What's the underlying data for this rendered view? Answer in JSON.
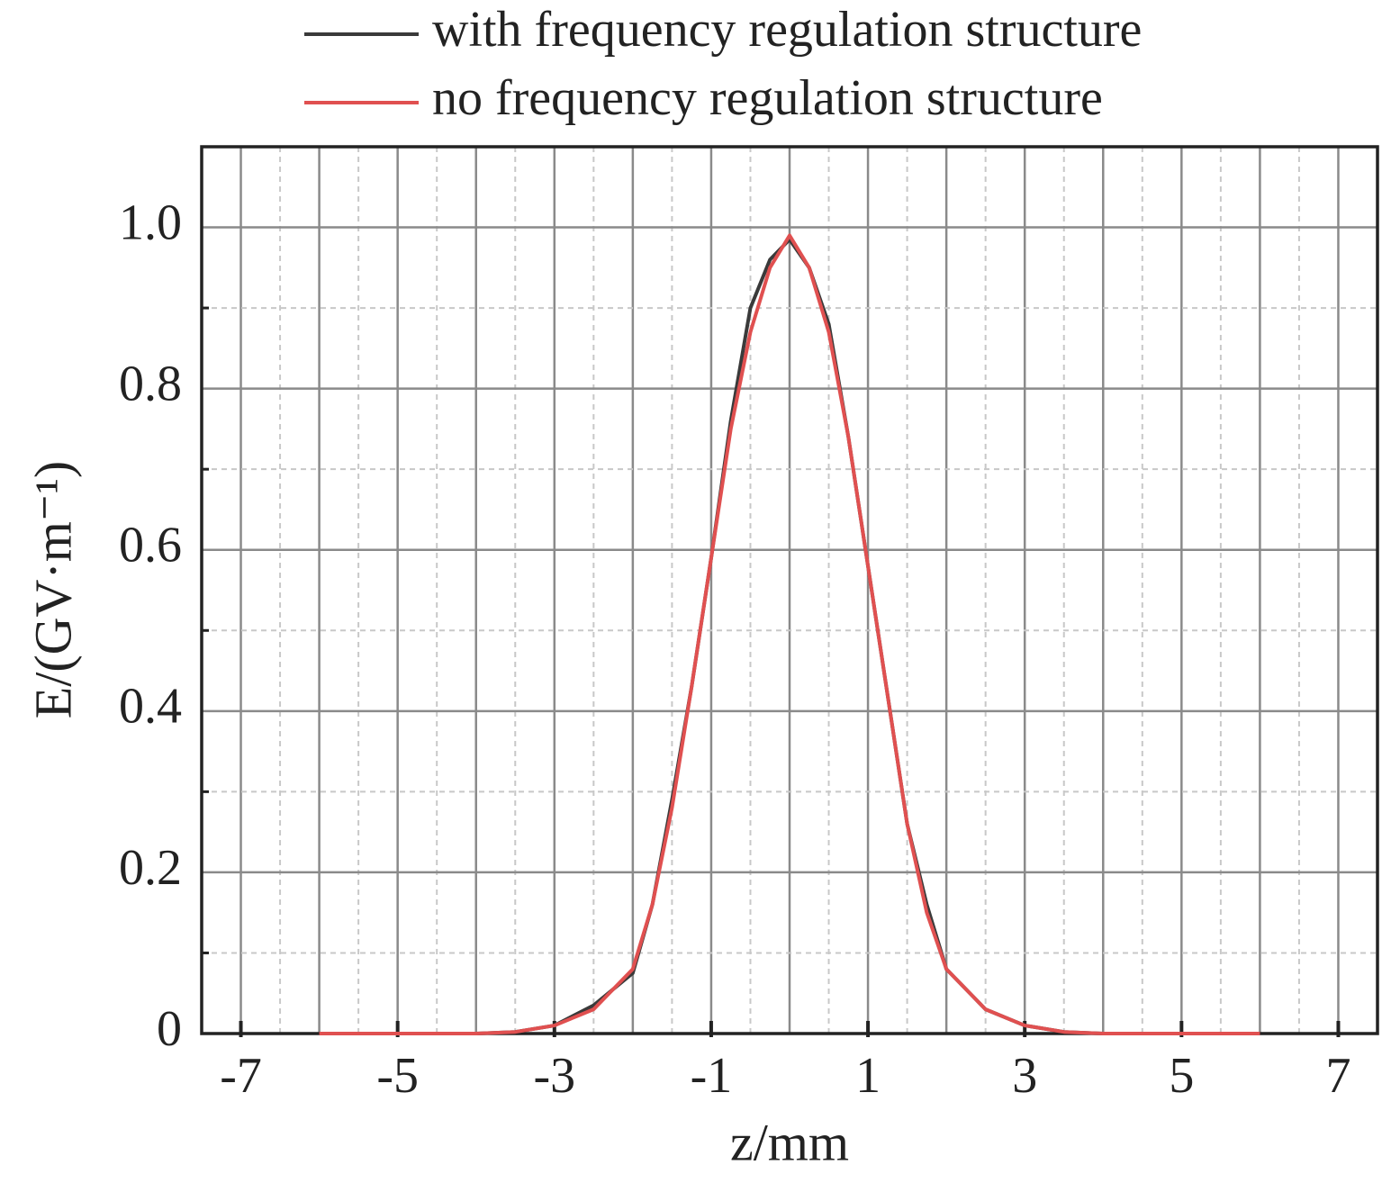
{
  "chart_data": {
    "type": "line",
    "x_label": "z/mm",
    "y_label": "E/(GV·m⁻¹)",
    "x": [
      -6,
      -5,
      -4,
      -3.5,
      -3,
      -2.5,
      -2,
      -1.75,
      -1.5,
      -1.25,
      -1,
      -0.75,
      -0.5,
      -0.25,
      0,
      0.25,
      0.5,
      0.75,
      1,
      1.25,
      1.5,
      1.75,
      2,
      2.5,
      3,
      3.5,
      4,
      5,
      6
    ],
    "series": [
      {
        "name": "with frequency regulation structure",
        "color": "#3a3a3a",
        "values": [
          0,
          0,
          0,
          0.002,
          0.01,
          0.035,
          0.075,
          0.16,
          0.29,
          0.43,
          0.59,
          0.76,
          0.9,
          0.96,
          0.985,
          0.95,
          0.88,
          0.74,
          0.58,
          0.42,
          0.26,
          0.16,
          0.08,
          0.03,
          0.01,
          0.002,
          0,
          0,
          0
        ]
      },
      {
        "name": "no frequency regulation structure",
        "color": "#e05050",
        "values": [
          0,
          0,
          0,
          0.002,
          0.01,
          0.03,
          0.08,
          0.16,
          0.28,
          0.43,
          0.59,
          0.75,
          0.87,
          0.95,
          0.99,
          0.95,
          0.87,
          0.74,
          0.58,
          0.42,
          0.26,
          0.15,
          0.08,
          0.03,
          0.01,
          0.002,
          0,
          0,
          0
        ]
      }
    ],
    "xlim": [
      -7.5,
      7.5
    ],
    "xticks": [
      -7,
      -5,
      -3,
      -1,
      1,
      3,
      5,
      7
    ],
    "x_minor_ticks": [
      -6,
      -4,
      -2,
      0,
      2,
      4,
      6
    ],
    "ylim": [
      0,
      1.1
    ],
    "yticks": [
      0,
      0.2,
      0.4,
      0.6,
      0.8,
      {
        "value": 1,
        "label": "1.0"
      }
    ],
    "grid": true,
    "legend": "top"
  }
}
